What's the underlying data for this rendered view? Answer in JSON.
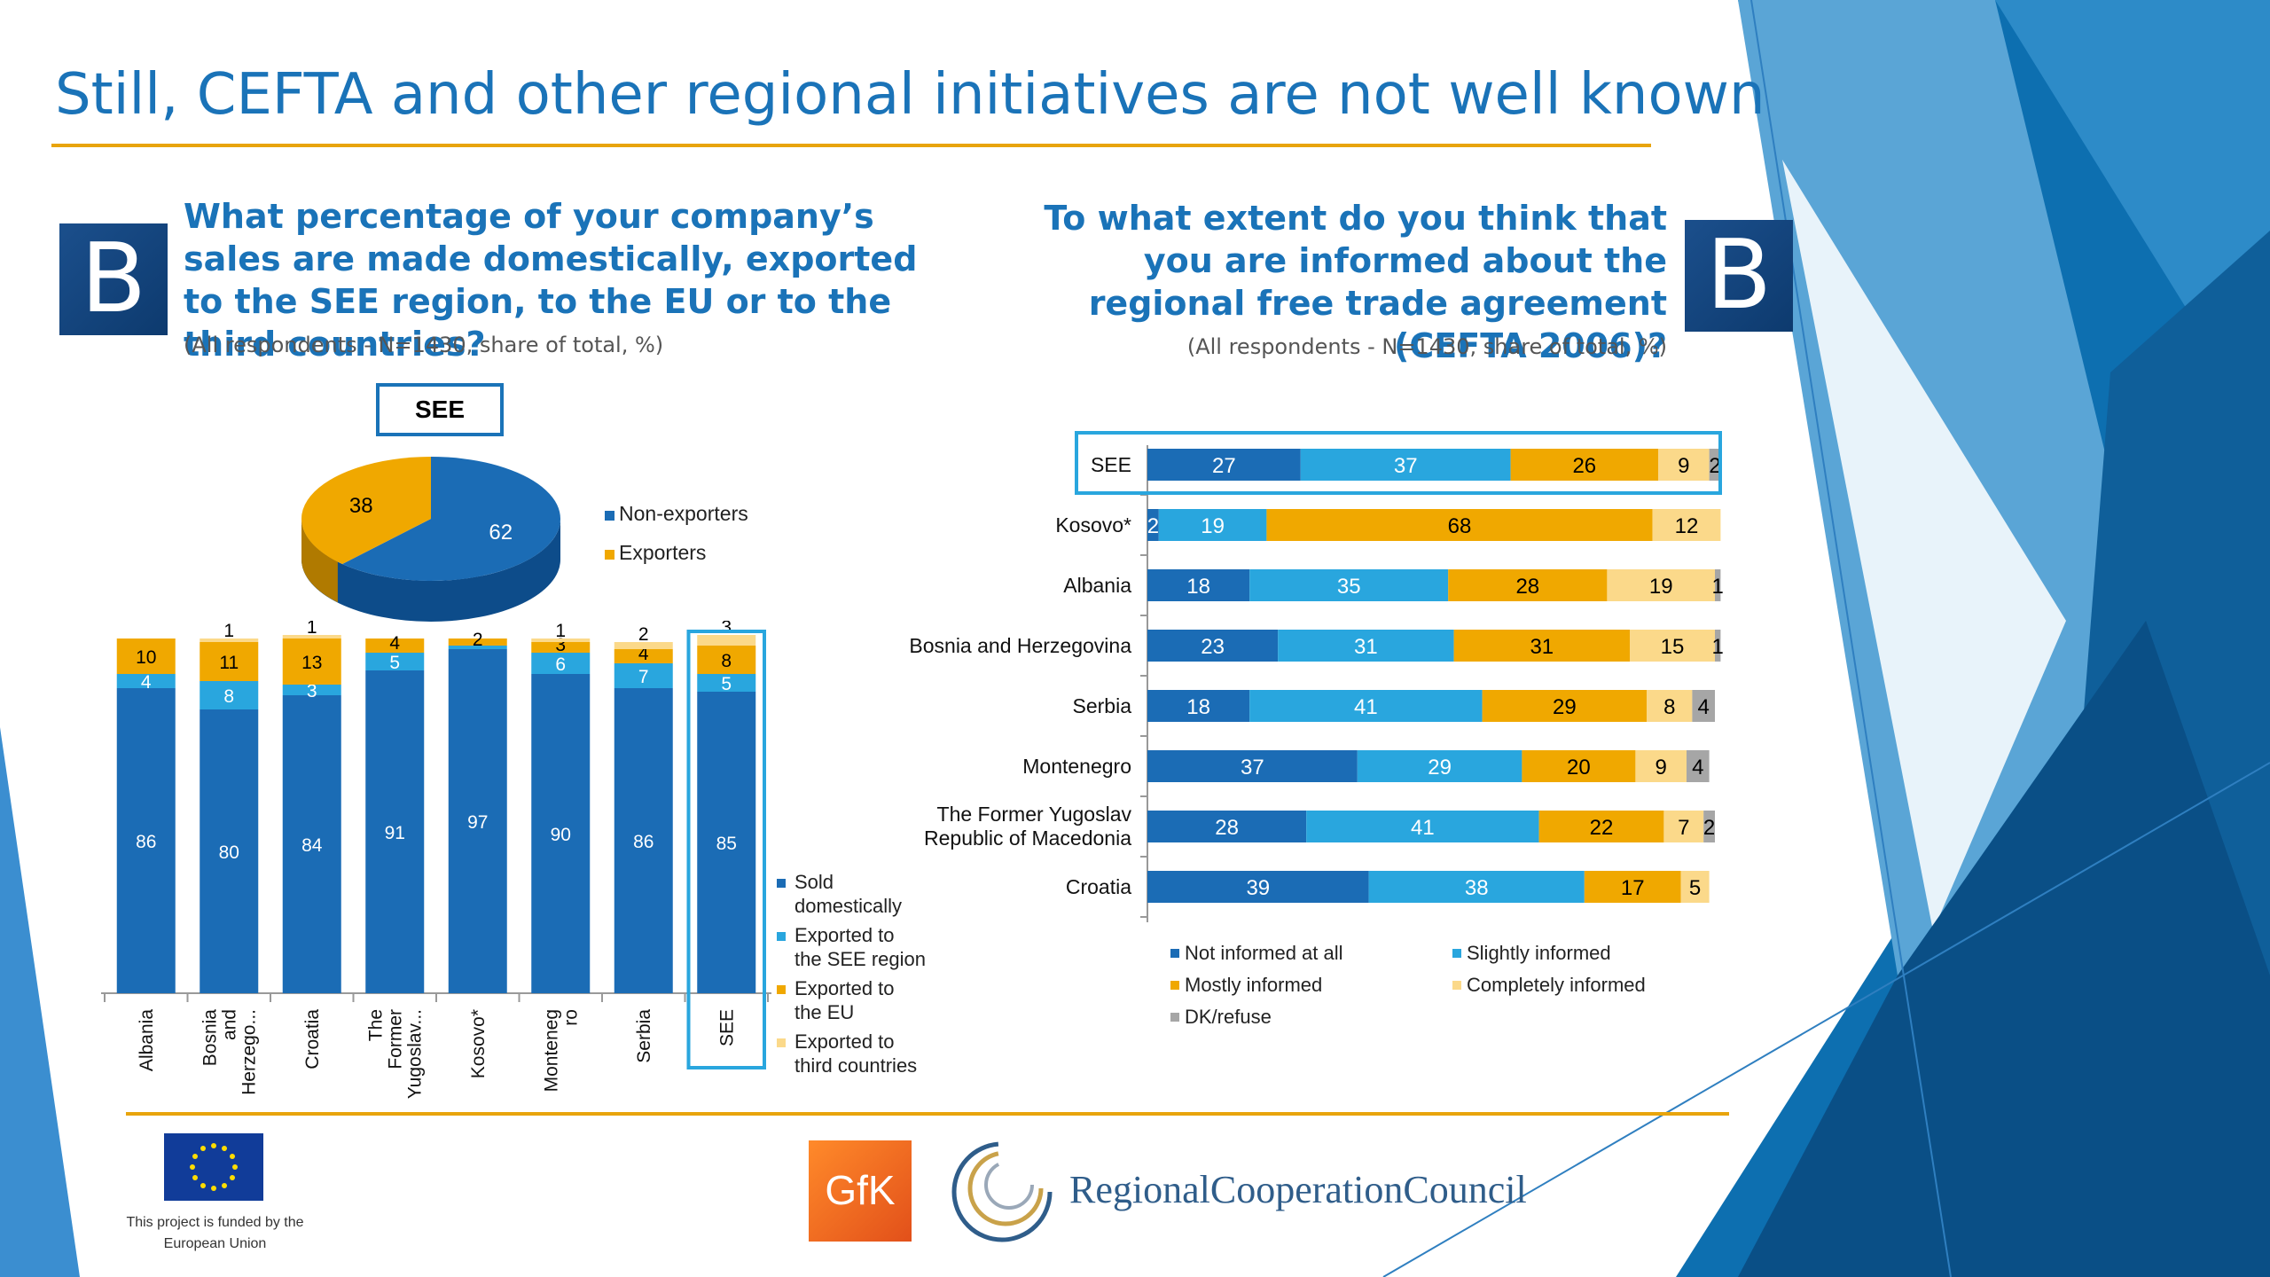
{
  "title": "Still, CEFTA and other regional initiatives are not well known",
  "badge_letter": "B",
  "left_question": "What percentage of your company’s sales are made domestically, exported to the SEE region, to the EU or to the third countries?",
  "left_note": "(All respondents - N=1430, share of total, %)",
  "see_box_label": "SEE",
  "right_question": "To what extent do you think that you are informed about the regional free trade agreement (CEFTA 2006)?",
  "right_note": "(All respondents - N=1430, share of total, %)",
  "eu_note": "This project is funded by the European Union",
  "gfk_logo_text": "GfK",
  "rcc_logo_text": "RegionalCooperationCouncil",
  "colors": {
    "dark_blue": "#1b6cb5",
    "light_blue": "#29a6de",
    "orange": "#f0a800",
    "light_yellow": "#fbd98a",
    "grey": "#a6a6a6",
    "accent_line": "#e8a40c",
    "title_blue": "#1a73b8"
  },
  "chart_data": [
    {
      "type": "pie",
      "title": "SEE",
      "labels": [
        "Non-exporters",
        "Exporters"
      ],
      "values": [
        62,
        38
      ],
      "legend": "right"
    },
    {
      "type": "bar",
      "stacked": true,
      "orientation": "vertical",
      "categories": [
        "Albania",
        "Bosnia and Herzego...",
        "Croatia",
        "The Former Yugoslav...",
        "Kosovo*",
        "Monteneg ro",
        "Serbia",
        "SEE"
      ],
      "series": [
        {
          "name": "Sold domestically",
          "values": [
            86,
            80,
            84,
            91,
            97,
            90,
            86,
            85
          ]
        },
        {
          "name": "Exported to the SEE region",
          "values": [
            4,
            8,
            3,
            5,
            1,
            6,
            7,
            5
          ]
        },
        {
          "name": "Exported to the EU",
          "values": [
            10,
            11,
            13,
            4,
            2,
            3,
            4,
            8
          ]
        },
        {
          "name": "Exported to third countries",
          "values": [
            0,
            1,
            1,
            0,
            0,
            1,
            2,
            3
          ]
        }
      ],
      "ylim": [
        0,
        100
      ],
      "legend": "right"
    },
    {
      "type": "bar",
      "stacked": true,
      "orientation": "horizontal",
      "categories": [
        "SEE",
        "Kosovo*",
        "Albania",
        "Bosnia and Herzegovina",
        "Serbia",
        "Montenegro",
        "The Former Yugoslav Republic of Macedonia",
        "Croatia"
      ],
      "series": [
        {
          "name": "Not informed at all",
          "values": [
            27,
            2,
            18,
            23,
            18,
            37,
            28,
            39
          ]
        },
        {
          "name": "Slightly informed",
          "values": [
            37,
            19,
            35,
            31,
            41,
            29,
            41,
            38
          ]
        },
        {
          "name": "Mostly informed",
          "values": [
            26,
            68,
            28,
            31,
            29,
            20,
            22,
            17
          ]
        },
        {
          "name": "Completely informed",
          "values": [
            9,
            12,
            19,
            15,
            8,
            9,
            7,
            5
          ]
        },
        {
          "name": "DK/refuse",
          "values": [
            2,
            0,
            1,
            1,
            4,
            4,
            2,
            0
          ]
        }
      ],
      "xlim": [
        0,
        100
      ],
      "legend": "bottom"
    }
  ]
}
